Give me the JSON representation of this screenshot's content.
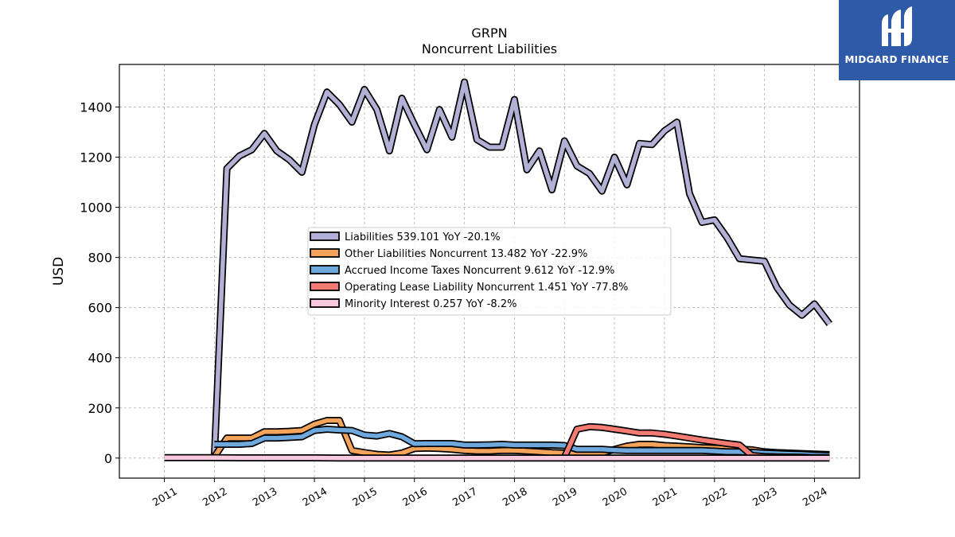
{
  "chart_data": {
    "type": "line",
    "title": "GRPN",
    "subtitle": "Noncurrent  Liabilities",
    "ylabel": "USD",
    "xlabel": "",
    "ylim": [
      -80,
      1570
    ],
    "xlim": [
      2010.1,
      2024.9
    ],
    "grid": true,
    "legend_placement": "center",
    "y_ticks": [
      0,
      200,
      400,
      600,
      800,
      1000,
      1200,
      1400
    ],
    "x_ticks": [
      2011,
      2012,
      2013,
      2014,
      2015,
      2016,
      2017,
      2018,
      2019,
      2020,
      2021,
      2022,
      2023,
      2024
    ],
    "series": [
      {
        "name": "Liabilities",
        "legend": "Liabilities  539.101 YoY -20.1%",
        "color": "#b3b0d6",
        "points": [
          [
            2012.0,
            5
          ],
          [
            2012.25,
            1155
          ],
          [
            2012.5,
            1205
          ],
          [
            2012.75,
            1230
          ],
          [
            2013.0,
            1295
          ],
          [
            2013.25,
            1225
          ],
          [
            2013.5,
            1190
          ],
          [
            2013.75,
            1140
          ],
          [
            2014.0,
            1330
          ],
          [
            2014.25,
            1460
          ],
          [
            2014.5,
            1410
          ],
          [
            2014.75,
            1340
          ],
          [
            2015.0,
            1470
          ],
          [
            2015.25,
            1390
          ],
          [
            2015.5,
            1225
          ],
          [
            2015.75,
            1435
          ],
          [
            2016.0,
            1330
          ],
          [
            2016.25,
            1230
          ],
          [
            2016.5,
            1390
          ],
          [
            2016.75,
            1280
          ],
          [
            2017.0,
            1500
          ],
          [
            2017.25,
            1270
          ],
          [
            2017.5,
            1240
          ],
          [
            2017.75,
            1240
          ],
          [
            2018.0,
            1430
          ],
          [
            2018.25,
            1150
          ],
          [
            2018.5,
            1225
          ],
          [
            2018.75,
            1070
          ],
          [
            2019.0,
            1265
          ],
          [
            2019.25,
            1165
          ],
          [
            2019.5,
            1135
          ],
          [
            2019.75,
            1065
          ],
          [
            2020.0,
            1200
          ],
          [
            2020.25,
            1090
          ],
          [
            2020.5,
            1255
          ],
          [
            2020.75,
            1250
          ],
          [
            2021.0,
            1305
          ],
          [
            2021.25,
            1340
          ],
          [
            2021.5,
            1055
          ],
          [
            2021.75,
            940
          ],
          [
            2022.0,
            950
          ],
          [
            2022.25,
            880
          ],
          [
            2022.5,
            795
          ],
          [
            2022.75,
            790
          ],
          [
            2023.0,
            785
          ],
          [
            2023.25,
            680
          ],
          [
            2023.5,
            610
          ],
          [
            2023.75,
            570
          ],
          [
            2024.0,
            615
          ],
          [
            2024.3,
            535
          ]
        ]
      },
      {
        "name": "Other Liabilities Noncurrent",
        "legend": "Other Liabilities Noncurrent  13.482 YoY -22.9%",
        "color": "#f4a35b",
        "points": [
          [
            2012.0,
            5
          ],
          [
            2012.25,
            80
          ],
          [
            2012.5,
            80
          ],
          [
            2012.75,
            80
          ],
          [
            2013.0,
            105
          ],
          [
            2013.25,
            105
          ],
          [
            2013.5,
            107
          ],
          [
            2013.75,
            110
          ],
          [
            2014.0,
            135
          ],
          [
            2014.25,
            150
          ],
          [
            2014.5,
            150
          ],
          [
            2014.75,
            30
          ],
          [
            2015.0,
            22
          ],
          [
            2015.25,
            15
          ],
          [
            2015.5,
            12
          ],
          [
            2015.75,
            20
          ],
          [
            2016.0,
            38
          ],
          [
            2016.25,
            40
          ],
          [
            2016.5,
            38
          ],
          [
            2016.75,
            35
          ],
          [
            2017.0,
            30
          ],
          [
            2017.25,
            28
          ],
          [
            2017.5,
            28
          ],
          [
            2017.75,
            30
          ],
          [
            2018.0,
            30
          ],
          [
            2018.25,
            28
          ],
          [
            2018.5,
            25
          ],
          [
            2018.75,
            22
          ],
          [
            2019.0,
            20
          ],
          [
            2019.25,
            18
          ],
          [
            2019.5,
            18
          ],
          [
            2019.75,
            20
          ],
          [
            2020.0,
            35
          ],
          [
            2020.25,
            48
          ],
          [
            2020.5,
            55
          ],
          [
            2020.75,
            55
          ],
          [
            2021.0,
            50
          ],
          [
            2021.25,
            48
          ],
          [
            2021.5,
            45
          ],
          [
            2021.75,
            42
          ],
          [
            2022.0,
            40
          ],
          [
            2022.25,
            38
          ],
          [
            2022.5,
            35
          ],
          [
            2022.75,
            33
          ],
          [
            2023.0,
            25
          ],
          [
            2023.25,
            22
          ],
          [
            2023.5,
            20
          ],
          [
            2023.75,
            18
          ],
          [
            2024.0,
            16
          ],
          [
            2024.3,
            14
          ]
        ]
      },
      {
        "name": "Accrued Income Taxes Noncurrent",
        "legend": "Accrued Income Taxes Noncurrent  9.612 YoY -12.9%",
        "color": "#6fa8dc",
        "points": [
          [
            2012.0,
            55
          ],
          [
            2012.25,
            55
          ],
          [
            2012.5,
            55
          ],
          [
            2012.75,
            58
          ],
          [
            2013.0,
            80
          ],
          [
            2013.25,
            80
          ],
          [
            2013.5,
            82
          ],
          [
            2013.75,
            85
          ],
          [
            2014.0,
            110
          ],
          [
            2014.25,
            115
          ],
          [
            2014.5,
            112
          ],
          [
            2014.75,
            110
          ],
          [
            2015.0,
            92
          ],
          [
            2015.25,
            88
          ],
          [
            2015.5,
            98
          ],
          [
            2015.75,
            85
          ],
          [
            2016.0,
            57
          ],
          [
            2016.25,
            58
          ],
          [
            2016.5,
            58
          ],
          [
            2016.75,
            58
          ],
          [
            2017.0,
            52
          ],
          [
            2017.25,
            52
          ],
          [
            2017.5,
            53
          ],
          [
            2017.75,
            55
          ],
          [
            2018.0,
            52
          ],
          [
            2018.25,
            52
          ],
          [
            2018.5,
            52
          ],
          [
            2018.75,
            52
          ],
          [
            2019.0,
            50
          ],
          [
            2019.25,
            35
          ],
          [
            2019.5,
            35
          ],
          [
            2019.75,
            35
          ],
          [
            2020.0,
            32
          ],
          [
            2020.25,
            30
          ],
          [
            2020.5,
            30
          ],
          [
            2020.75,
            30
          ],
          [
            2021.0,
            30
          ],
          [
            2021.25,
            30
          ],
          [
            2021.5,
            30
          ],
          [
            2021.75,
            30
          ],
          [
            2022.0,
            28
          ],
          [
            2022.25,
            25
          ],
          [
            2022.5,
            25
          ],
          [
            2022.75,
            23
          ],
          [
            2023.0,
            20
          ],
          [
            2023.25,
            18
          ],
          [
            2023.5,
            16
          ],
          [
            2023.75,
            15
          ],
          [
            2024.0,
            12
          ],
          [
            2024.3,
            10
          ]
        ]
      },
      {
        "name": "Operating Lease Liability Noncurrent",
        "legend": "Operating Lease Liability Noncurrent  1.451 YoY -77.8%",
        "color": "#f47b72",
        "points": [
          [
            2019.0,
            3
          ],
          [
            2019.25,
            115
          ],
          [
            2019.5,
            125
          ],
          [
            2019.75,
            122
          ],
          [
            2020.0,
            115
          ],
          [
            2020.25,
            108
          ],
          [
            2020.5,
            100
          ],
          [
            2020.75,
            100
          ],
          [
            2021.0,
            95
          ],
          [
            2021.25,
            88
          ],
          [
            2021.5,
            80
          ],
          [
            2021.75,
            72
          ],
          [
            2022.0,
            65
          ],
          [
            2022.25,
            58
          ],
          [
            2022.5,
            52
          ],
          [
            2022.75,
            10
          ],
          [
            2023.0,
            6
          ],
          [
            2023.25,
            5
          ],
          [
            2023.5,
            4
          ],
          [
            2023.75,
            3
          ],
          [
            2024.0,
            2
          ],
          [
            2024.3,
            1.5
          ]
        ]
      },
      {
        "name": "Minority Interest",
        "legend": "Minority Interest  0.257 YoY -8.2%",
        "color": "#f8c8dc",
        "points": [
          [
            2011.0,
            2
          ],
          [
            2011.5,
            2
          ],
          [
            2012.0,
            2
          ],
          [
            2012.5,
            1
          ],
          [
            2013.0,
            1
          ],
          [
            2014.0,
            1
          ],
          [
            2014.5,
            0
          ],
          [
            2015.0,
            0
          ],
          [
            2015.5,
            0
          ],
          [
            2016.0,
            0
          ],
          [
            2017.0,
            0
          ],
          [
            2018.0,
            0
          ],
          [
            2019.0,
            0
          ],
          [
            2020.0,
            0
          ],
          [
            2021.0,
            0
          ],
          [
            2022.0,
            0
          ],
          [
            2023.0,
            0
          ],
          [
            2024.0,
            0
          ],
          [
            2024.3,
            0.3
          ]
        ]
      }
    ]
  },
  "logo": {
    "text": "MIDGARD FINANCE",
    "color": "#2f5aa8"
  }
}
